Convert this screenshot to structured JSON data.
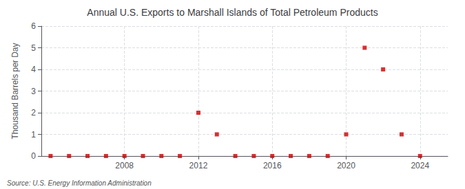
{
  "chart_data": {
    "type": "scatter",
    "title": "Annual U.S. Exports to Marshall Islands of Total Petroleum Products",
    "ylabel": "Thousand Barrels per Day",
    "annotation": "Source: U.S. Energy Information Administration",
    "x": [
      2004,
      2005,
      2006,
      2007,
      2008,
      2009,
      2010,
      2011,
      2012,
      2013,
      2014,
      2015,
      2016,
      2017,
      2018,
      2019,
      2020,
      2021,
      2022,
      2023,
      2024
    ],
    "values": [
      0,
      0,
      0,
      0,
      0,
      0,
      0,
      0,
      2,
      1,
      0,
      0,
      0,
      0,
      0,
      0,
      1,
      5,
      4,
      1,
      0
    ],
    "color": "#cc0000",
    "marker": "square",
    "xlim": [
      2003.5,
      2025.5
    ],
    "xticks": [
      2008,
      2012,
      2016,
      2020,
      2024
    ],
    "ylim": [
      0,
      6
    ],
    "yticks": [
      0,
      1,
      2,
      3,
      4,
      5,
      6
    ],
    "grid": true
  }
}
